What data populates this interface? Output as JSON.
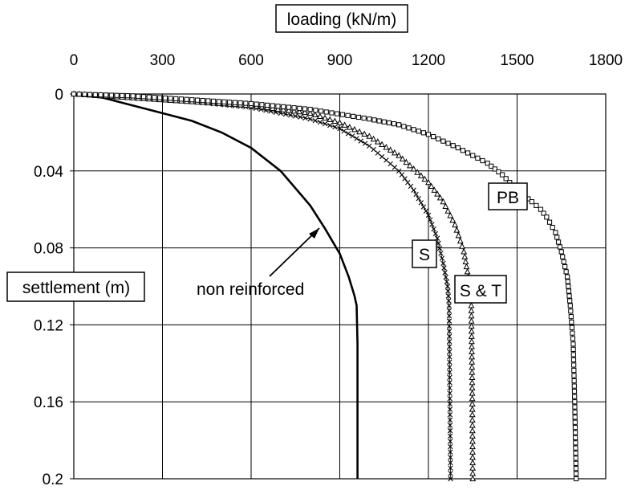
{
  "chart_data": {
    "type": "line",
    "title": "",
    "xlabel": "loading (kN/m)",
    "ylabel": "settlement (m)",
    "x_axis_position": "top",
    "y_axis_inverted": true,
    "xlim": [
      0,
      1800
    ],
    "ylim": [
      0,
      0.2
    ],
    "x_ticks": [
      "0",
      "300",
      "600",
      "900",
      "1200",
      "1500",
      "1800"
    ],
    "y_ticks": [
      "0",
      "0.04",
      "0.08",
      "0.12",
      "0.16",
      "0.2"
    ],
    "grid": true,
    "legend": "none",
    "series": [
      {
        "name": "non reinforced",
        "marker": "line",
        "x": [
          0,
          100,
          200,
          300,
          400,
          500,
          600,
          700,
          800,
          850,
          900,
          930,
          950,
          957,
          960,
          960
        ],
        "y": [
          0,
          0.002,
          0.006,
          0.01,
          0.014,
          0.02,
          0.028,
          0.04,
          0.058,
          0.07,
          0.083,
          0.095,
          0.105,
          0.11,
          0.13,
          0.2
        ]
      },
      {
        "name": "S",
        "marker": "x",
        "x": [
          0,
          200,
          400,
          600,
          800,
          900,
          1000,
          1100,
          1150,
          1200,
          1230,
          1250,
          1265,
          1270,
          1272,
          1275
        ],
        "y": [
          0,
          0.002,
          0.004,
          0.007,
          0.013,
          0.018,
          0.027,
          0.04,
          0.05,
          0.063,
          0.075,
          0.088,
          0.1,
          0.11,
          0.15,
          0.2
        ]
      },
      {
        "name": "S & T",
        "marker": "triangle",
        "x": [
          0,
          200,
          400,
          600,
          800,
          900,
          1000,
          1100,
          1200,
          1250,
          1290,
          1320,
          1335,
          1345,
          1348,
          1350
        ],
        "y": [
          0,
          0.002,
          0.004,
          0.006,
          0.01,
          0.015,
          0.022,
          0.032,
          0.046,
          0.056,
          0.068,
          0.082,
          0.095,
          0.11,
          0.15,
          0.2
        ]
      },
      {
        "name": "PB",
        "marker": "square",
        "x": [
          0,
          200,
          400,
          600,
          800,
          1000,
          1100,
          1200,
          1300,
          1400,
          1450,
          1500,
          1550,
          1580,
          1600,
          1630,
          1650,
          1670,
          1680,
          1690,
          1695,
          1700
        ],
        "y": [
          0,
          0.001,
          0.003,
          0.005,
          0.008,
          0.013,
          0.016,
          0.021,
          0.028,
          0.036,
          0.042,
          0.05,
          0.056,
          0.06,
          0.064,
          0.072,
          0.082,
          0.095,
          0.11,
          0.13,
          0.16,
          0.2
        ]
      }
    ],
    "annotations": [
      {
        "text": "PB",
        "boxed": true
      },
      {
        "text": "S",
        "boxed": true
      },
      {
        "text": "S & T",
        "boxed": true
      },
      {
        "text": "non reinforced",
        "boxed": false,
        "arrow": true
      }
    ]
  }
}
